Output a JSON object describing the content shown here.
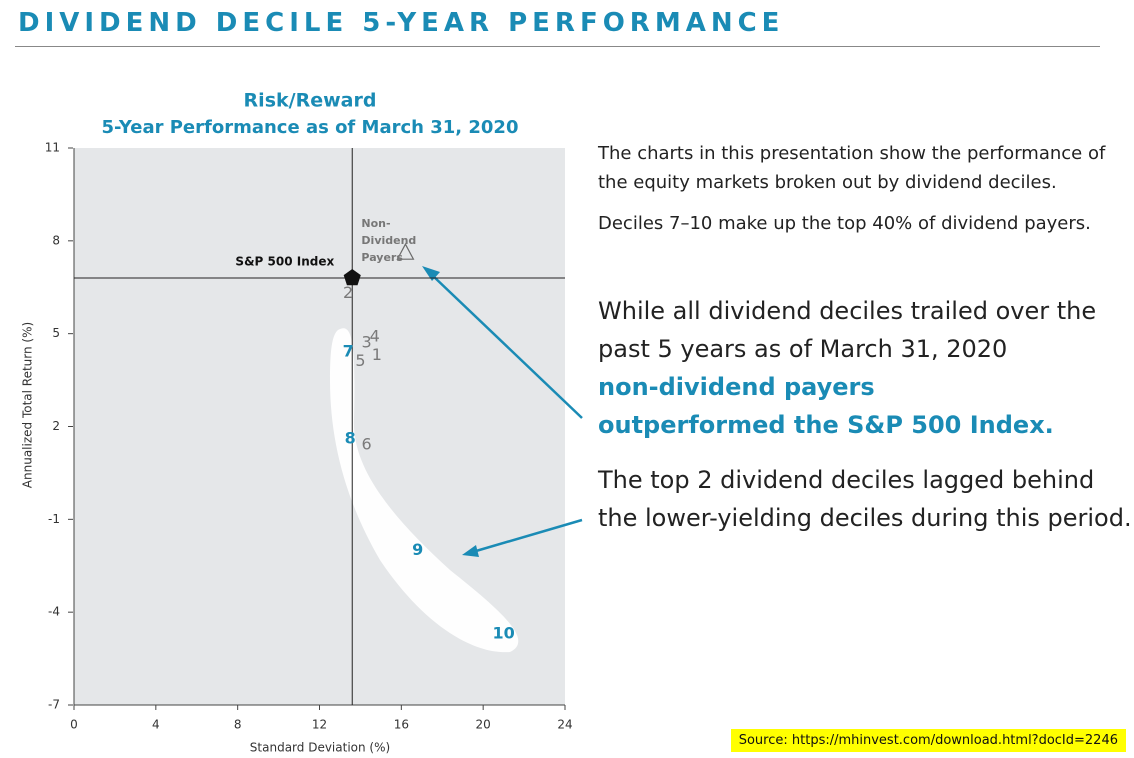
{
  "header": {
    "title": "DIVIDEND DECILE 5-YEAR PERFORMANCE"
  },
  "chart_data": {
    "type": "scatter",
    "title": "Risk/Reward",
    "subtitle": "5-Year Performance as of March 31, 2020",
    "x_label": "Standard Deviation (%)",
    "y_label": "Annualized Total Return (%)",
    "xlim": [
      0,
      24
    ],
    "xticks": [
      0,
      4,
      8,
      12,
      16,
      20,
      24
    ],
    "ylim": [
      -7,
      11
    ],
    "yticks": [
      -7,
      -4,
      -1,
      2,
      5,
      8,
      11
    ],
    "points": [
      {
        "label": "S&P 500 Index",
        "marker": "pentagon",
        "color": "#111111",
        "x": 13.6,
        "y": 6.8
      },
      {
        "label": "Non-Dividend Payers",
        "marker": "triangle",
        "color": "#6b6b6b",
        "x": 16.2,
        "y": 7.6
      },
      {
        "label": "1",
        "marker": "text",
        "color": "#7a7a7a",
        "x": 14.8,
        "y": 4.3
      },
      {
        "label": "2",
        "marker": "text",
        "color": "#7a7a7a",
        "x": 13.4,
        "y": 6.3
      },
      {
        "label": "3",
        "marker": "text",
        "color": "#7a7a7a",
        "x": 14.3,
        "y": 4.7
      },
      {
        "label": "4",
        "marker": "text",
        "color": "#7a7a7a",
        "x": 14.7,
        "y": 4.9
      },
      {
        "label": "5",
        "marker": "text",
        "color": "#7a7a7a",
        "x": 14.0,
        "y": 4.1
      },
      {
        "label": "6",
        "marker": "text",
        "color": "#7a7a7a",
        "x": 14.3,
        "y": 1.4
      },
      {
        "label": "7",
        "marker": "text",
        "color": "#1a8bb5",
        "x": 13.4,
        "y": 4.4
      },
      {
        "label": "8",
        "marker": "text",
        "color": "#1a8bb5",
        "x": 13.5,
        "y": 1.6
      },
      {
        "label": "9",
        "marker": "text",
        "color": "#1a8bb5",
        "x": 16.8,
        "y": -2.0
      },
      {
        "label": "10",
        "marker": "text",
        "color": "#1a8bb5",
        "x": 21.0,
        "y": -4.7
      }
    ]
  },
  "text": {
    "intro": [
      "The charts in this presentation show the performance of the equity markets broken out by dividend deciles.",
      "Deciles 7–10 make up the top 40% of dividend payers."
    ],
    "highlight": "While all dividend deciles trailed over the past 5 years as of March 31, 2020",
    "highlight_emphasis": "non-dividend payers outperformed the S&P 500 Index.",
    "note": "The top 2 dividend deciles lagged behind the lower-yielding deciles during this period."
  },
  "source": "Source: https://mhinvest.com/download.html?docId=2246"
}
